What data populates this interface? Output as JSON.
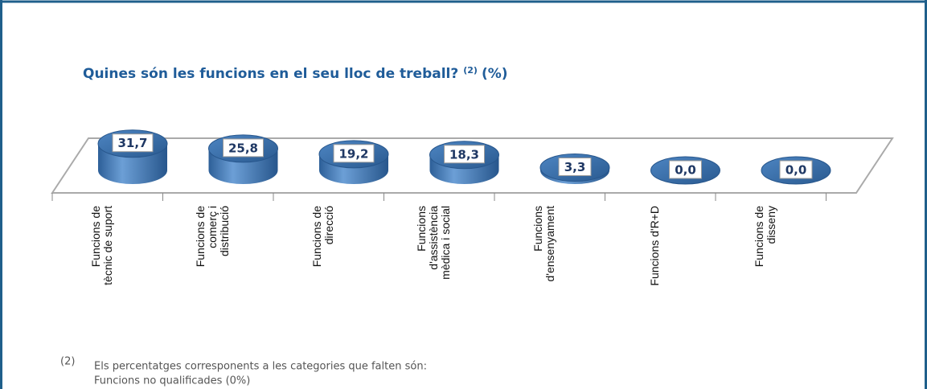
{
  "chart_data": {
    "type": "bar3d",
    "title": "Quines són les funcions en el seu lloc de treball?",
    "title_note": "(2)",
    "title_unit": "(%)",
    "categories": [
      [
        "Funcions de",
        "tècnic de suport"
      ],
      [
        "Funcions de",
        "comerç i",
        "distribució"
      ],
      [
        "Funcions de",
        "direcció"
      ],
      [
        "Funcions",
        "d'assistència",
        "mèdica i social"
      ],
      [
        "Funcions",
        "d'ensenyament"
      ],
      [
        "Funcions d'R+D"
      ],
      [
        "Funcions de",
        "disseny"
      ]
    ],
    "values": [
      31.7,
      25.8,
      19.2,
      18.3,
      3.3,
      0.0,
      0.0
    ],
    "value_labels": [
      "31,7",
      "25,8",
      "19,2",
      "18,3",
      "3,3",
      "0,0",
      "0,0"
    ],
    "color": "#3f76b3",
    "footnote": {
      "marker": "(2)",
      "lines": [
        "Els percentatges corresponents a les categories que falten són:",
        "Funcions no qualificades (0%)"
      ]
    }
  }
}
